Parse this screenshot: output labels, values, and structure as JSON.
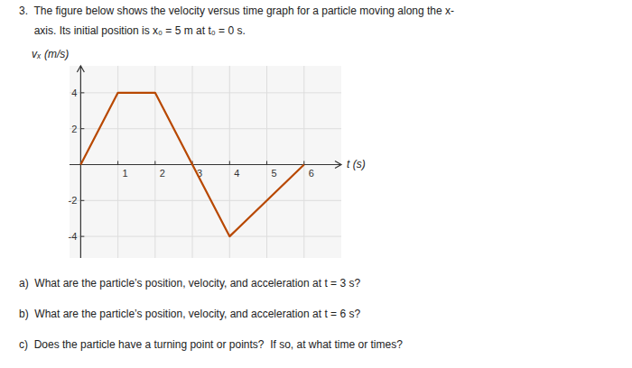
{
  "chart_data": {
    "type": "line",
    "title": "3.  The figure below shows the velocity versus time graph for a particle moving along the x-",
    "subtitle": "     axis. Its initial position is x₀ = 5 m at t₀ = 0 s.",
    "xlabel": "t (s)",
    "ylabel": "vₓ (m/s)",
    "x": [
      0,
      1,
      2,
      3,
      4,
      6
    ],
    "values": [
      0,
      4,
      4,
      0,
      -4,
      0
    ],
    "color": "#b84800",
    "xlim": [
      -0.3,
      7.0
    ],
    "ylim": [
      -5.2,
      5.5
    ],
    "xticks": [
      1,
      2,
      3,
      4,
      5,
      6
    ],
    "yticks": [
      -4,
      -2,
      2,
      4
    ],
    "grid": true,
    "annotations": [
      "a)  What are the particle’s position, velocity, and acceleration at t = 3 s?",
      "b)  What are the particle’s position, velocity, and acceleration at t = 6 s?",
      "c)  Does the particle have a turning point or points?  If so, at what time or times?"
    ]
  }
}
